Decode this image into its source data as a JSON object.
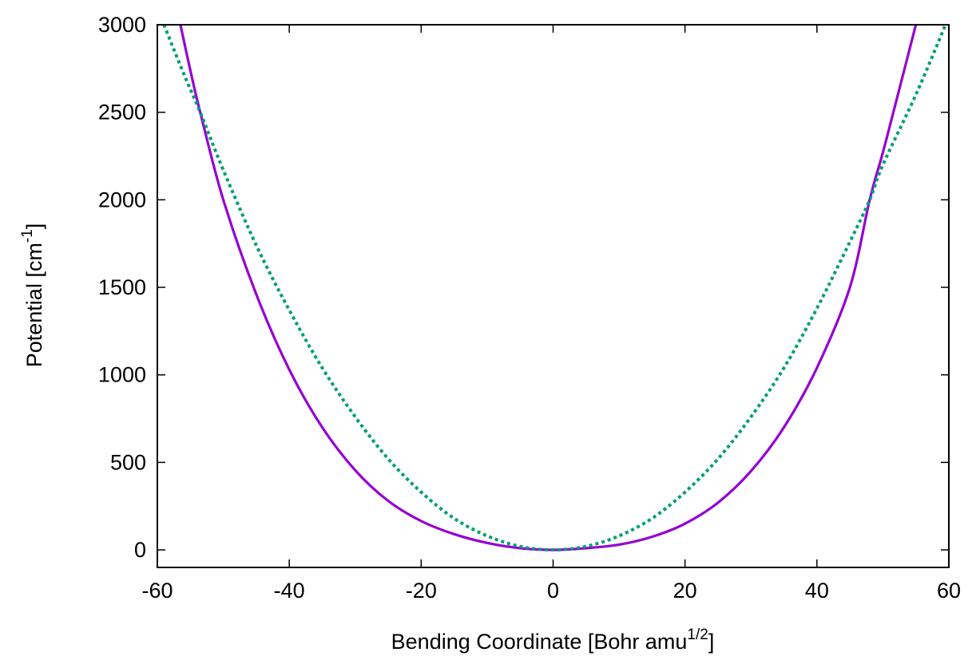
{
  "chart_data": {
    "type": "line",
    "xlabel_main": "Bending Coordinate [Bohr amu",
    "xlabel_sup": "1/2",
    "xlabel_end": "]",
    "ylabel_main": "Potential [cm",
    "ylabel_sup": "-1",
    "ylabel_end": "]",
    "xlim": [
      -60,
      60
    ],
    "ylim": [
      -100,
      3000
    ],
    "xticks": [
      -60,
      -40,
      -20,
      0,
      20,
      40,
      60
    ],
    "yticks": [
      0,
      500,
      1000,
      1500,
      2000,
      2500,
      3000
    ],
    "grid": false,
    "series": [
      {
        "style": "solid",
        "color": "#9400d3",
        "points": [
          [
            -56.5,
            3000
          ],
          [
            -55,
            2740
          ],
          [
            -53.5,
            2500
          ],
          [
            -50,
            2000
          ],
          [
            -45,
            1460
          ],
          [
            -40,
            1030
          ],
          [
            -35,
            700
          ],
          [
            -30,
            455
          ],
          [
            -25,
            280
          ],
          [
            -20,
            165
          ],
          [
            -15,
            90
          ],
          [
            -10,
            40
          ],
          [
            -5,
            10
          ],
          [
            0,
            0
          ],
          [
            5,
            10
          ],
          [
            10,
            30
          ],
          [
            15,
            75
          ],
          [
            20,
            150
          ],
          [
            25,
            270
          ],
          [
            30,
            450
          ],
          [
            35,
            700
          ],
          [
            40,
            1040
          ],
          [
            45,
            1500
          ],
          [
            48,
            2000
          ],
          [
            50,
            2270
          ],
          [
            52,
            2560
          ],
          [
            55,
            3000
          ]
        ]
      },
      {
        "style": "dotted",
        "color": "#009e73",
        "points": [
          [
            -59,
            3000
          ],
          [
            -56,
            2720
          ],
          [
            -53.5,
            2500
          ],
          [
            -50,
            2170
          ],
          [
            -45,
            1740
          ],
          [
            -40,
            1370
          ],
          [
            -35,
            1040
          ],
          [
            -30,
            760
          ],
          [
            -25,
            520
          ],
          [
            -20,
            330
          ],
          [
            -15,
            180
          ],
          [
            -10,
            80
          ],
          [
            -5,
            20
          ],
          [
            0,
            0
          ],
          [
            5,
            20
          ],
          [
            10,
            80
          ],
          [
            15,
            180
          ],
          [
            20,
            330
          ],
          [
            25,
            520
          ],
          [
            30,
            760
          ],
          [
            35,
            1040
          ],
          [
            40,
            1380
          ],
          [
            45,
            1760
          ],
          [
            48,
            2000
          ],
          [
            50,
            2200
          ],
          [
            55,
            2600
          ],
          [
            59.5,
            3000
          ]
        ]
      }
    ]
  }
}
